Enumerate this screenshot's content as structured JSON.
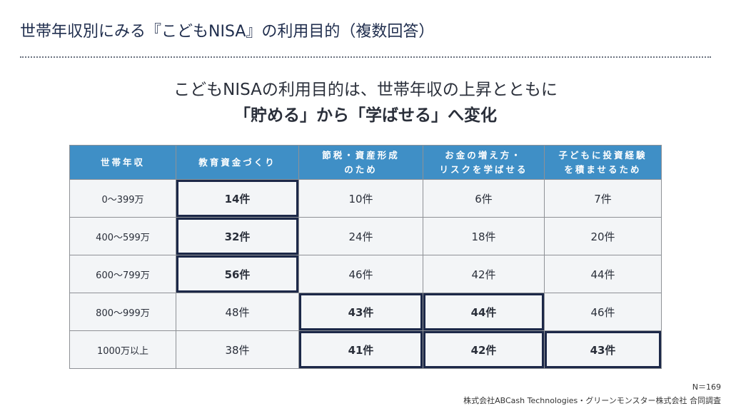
{
  "header": {
    "title": "世帯年収別にみる『こどもNISA』の利用目的（複数回答）"
  },
  "subtitle": {
    "line1": "こどもNISAの利用目的は、世帯年収の上昇とともに",
    "line2": "「貯める」から「学ばせる」へ変化"
  },
  "table": {
    "columns": [
      "世帯年収",
      "教育資金づくり",
      "節税・資産形成\nのため",
      "お金の増え方・\nリスクを学ばせる",
      "子どもに投資経験\nを積ませるため"
    ],
    "rows": [
      [
        "0〜399万",
        "14件",
        "10件",
        "6件",
        "7件"
      ],
      [
        "400〜599万",
        "32件",
        "24件",
        "18件",
        "20件"
      ],
      [
        "600〜799万",
        "56件",
        "46件",
        "42件",
        "44件"
      ],
      [
        "800〜999万",
        "48件",
        "43件",
        "44件",
        "46件"
      ],
      [
        "1000万以上",
        "38件",
        "41件",
        "42件",
        "43件"
      ]
    ],
    "highlighted": [
      [
        0,
        1
      ],
      [
        1,
        1
      ],
      [
        2,
        1
      ],
      [
        3,
        2
      ],
      [
        3,
        3
      ],
      [
        4,
        2
      ],
      [
        4,
        3
      ],
      [
        4,
        4
      ]
    ]
  },
  "footer": {
    "note": "N＝169",
    "source": "株式会社ABCash Technologies・グリーンモンスター株式会社 合同調査"
  }
}
